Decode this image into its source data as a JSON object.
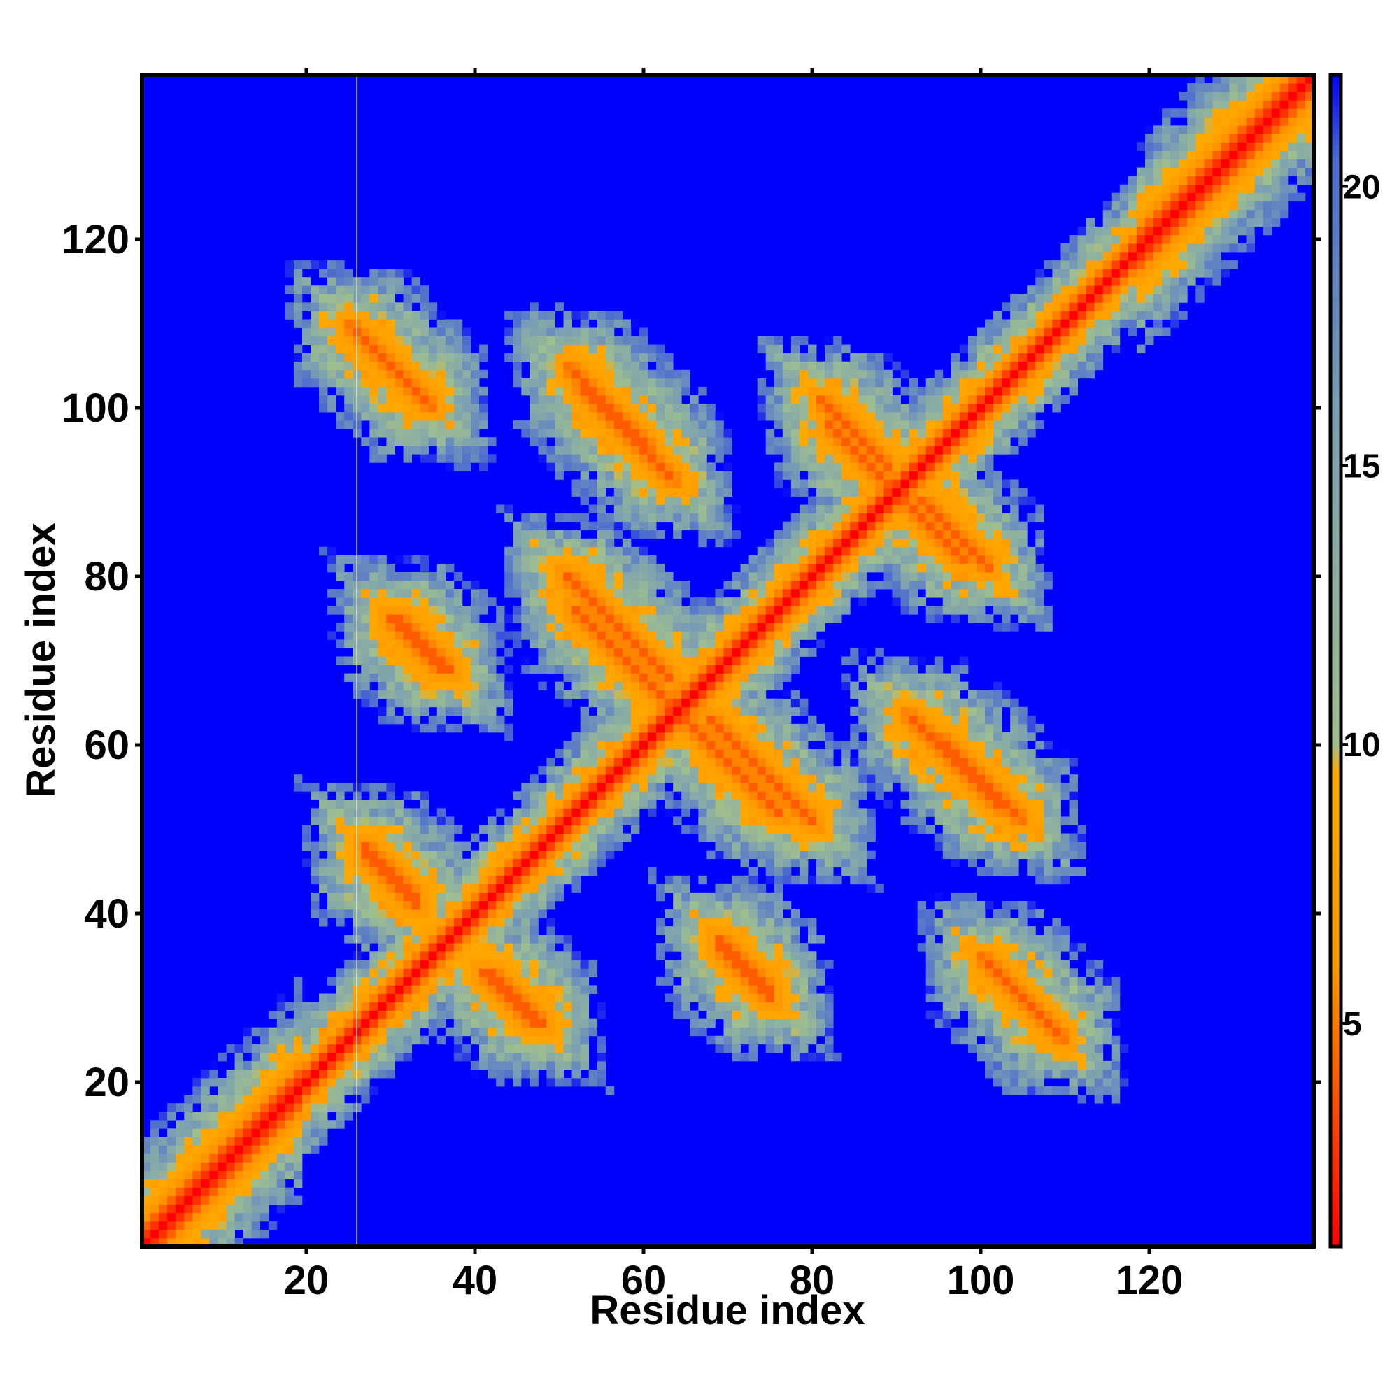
{
  "chart_data": {
    "type": "heatmap",
    "title": "",
    "xlabel": "Residue index",
    "ylabel": "Residue index",
    "xlim": [
      1,
      139
    ],
    "ylim": [
      1,
      139
    ],
    "x_ticks": [
      20,
      40,
      60,
      80,
      100,
      120
    ],
    "y_ticks": [
      20,
      40,
      60,
      80,
      100,
      120
    ],
    "colorbar": {
      "ticks": [
        5,
        10,
        15,
        20
      ],
      "range": [
        1,
        22
      ],
      "stops": [
        {
          "value": 1,
          "color": "#ff0000"
        },
        {
          "value": 6,
          "color": "#ff9900"
        },
        {
          "value": 9.5,
          "color": "#ffaa00"
        },
        {
          "value": 10,
          "color": "#9fbf8f"
        },
        {
          "value": 16,
          "color": "#7b9fb3"
        },
        {
          "value": 20.5,
          "color": "#4a6ad0"
        },
        {
          "value": 22,
          "color": "#0000ff"
        }
      ]
    },
    "background_color": "#0000ff",
    "values_note_sparse": "Distance map (Å): cells not listed are >= 22 (background).",
    "features": [
      {
        "kind": "diagonal",
        "from": 1,
        "to": 139
      },
      {
        "kind": "antiparallel",
        "center": [
          30,
          105
        ],
        "extent": 6
      },
      {
        "kind": "antiparallel",
        "center": [
          56,
          100
        ],
        "extent": 6
      },
      {
        "kind": "antiparallel",
        "center": [
          85,
          97
        ],
        "extent": 5
      },
      {
        "kind": "antiparallel",
        "center": [
          57,
          74
        ],
        "extent": 8
      },
      {
        "kind": "antiparallel",
        "center": [
          33,
          72
        ],
        "extent": 4
      },
      {
        "kind": "antiparallel",
        "center": [
          70,
          58
        ],
        "extent": 8
      },
      {
        "kind": "antiparallel",
        "center": [
          97,
          58
        ],
        "extent": 7
      },
      {
        "kind": "antiparallel",
        "center": [
          45,
          30
        ],
        "extent": 4
      },
      {
        "kind": "antiparallel",
        "center": [
          72,
          34
        ],
        "extent": 4
      },
      {
        "kind": "antiparallel",
        "center": [
          30,
          44
        ],
        "extent": 4
      },
      {
        "kind": "antiparallel",
        "center": [
          106,
          29
        ],
        "extent": 3
      },
      {
        "kind": "antiparallel",
        "center": [
          94,
          86
        ],
        "extent": 5
      }
    ]
  }
}
